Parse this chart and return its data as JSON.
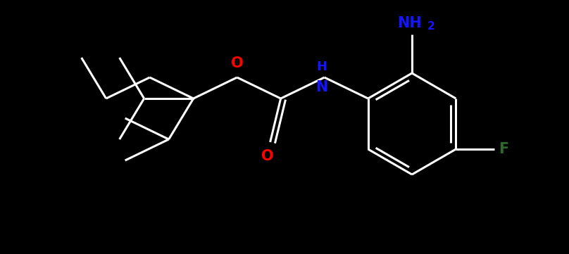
{
  "background_color": "#000000",
  "bond_color": "#ffffff",
  "NH_color": "#1414ff",
  "NH2_color": "#1414ff",
  "O_color": "#ff0000",
  "F_color": "#2d6b2d",
  "bond_width": 2.2,
  "font_size_atoms": 15,
  "font_size_subscript": 11,
  "figsize": [
    8.08,
    3.61
  ],
  "dpi": 100,
  "xlim": [
    0,
    8.08
  ],
  "ylim": [
    0,
    3.61
  ]
}
